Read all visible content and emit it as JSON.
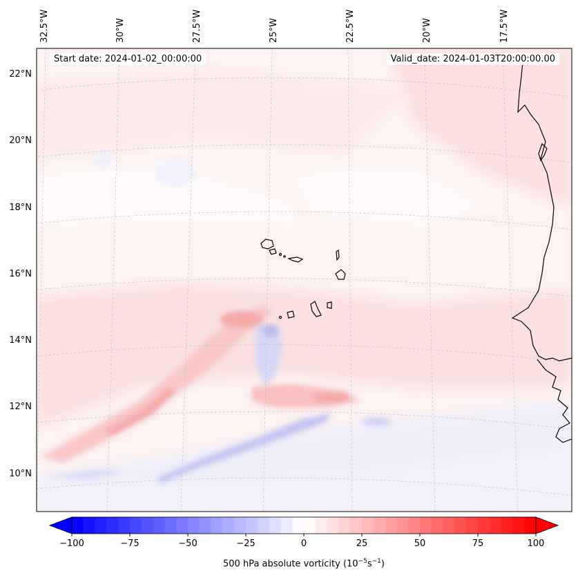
{
  "header": {
    "start_date": "Start date: 2024-01-02_00:00:00",
    "valid_date": "Valid_date: 2024-01-03T20:00:00.00"
  },
  "map": {
    "lon_labels": [
      "32.5°W",
      "30°W",
      "27.5°W",
      "25°W",
      "22.5°W",
      "20°W",
      "17.5°W"
    ],
    "lat_labels": [
      "22°N",
      "20°N",
      "18°N",
      "16°N",
      "14°N",
      "12°N",
      "10°N"
    ],
    "islands": [
      "Santo Antão",
      "São Vicente",
      "Santa Luzia",
      "São Nicolau",
      "Sal",
      "Boa Vista",
      "Maio",
      "Santiago",
      "Fogo",
      "Brava"
    ]
  },
  "colorbar": {
    "min": -100,
    "max": 100,
    "ticks": [
      "−100",
      "−75",
      "−50",
      "−25",
      "0",
      "25",
      "50",
      "75",
      "100"
    ],
    "label": "500 hPa absolute vorticity (10",
    "label_exp1": "−5",
    "label_mid": "s",
    "label_exp2": "−1",
    "label_end": ")",
    "negative_color": "#0000ff",
    "positive_color": "#ff0000"
  },
  "colors": {
    "weak_positive": "#fde8e8",
    "moderate_positive": "#f9b8b8",
    "weak_negative": "#e8e8fb",
    "moderate_negative": "#c8c8f4"
  }
}
